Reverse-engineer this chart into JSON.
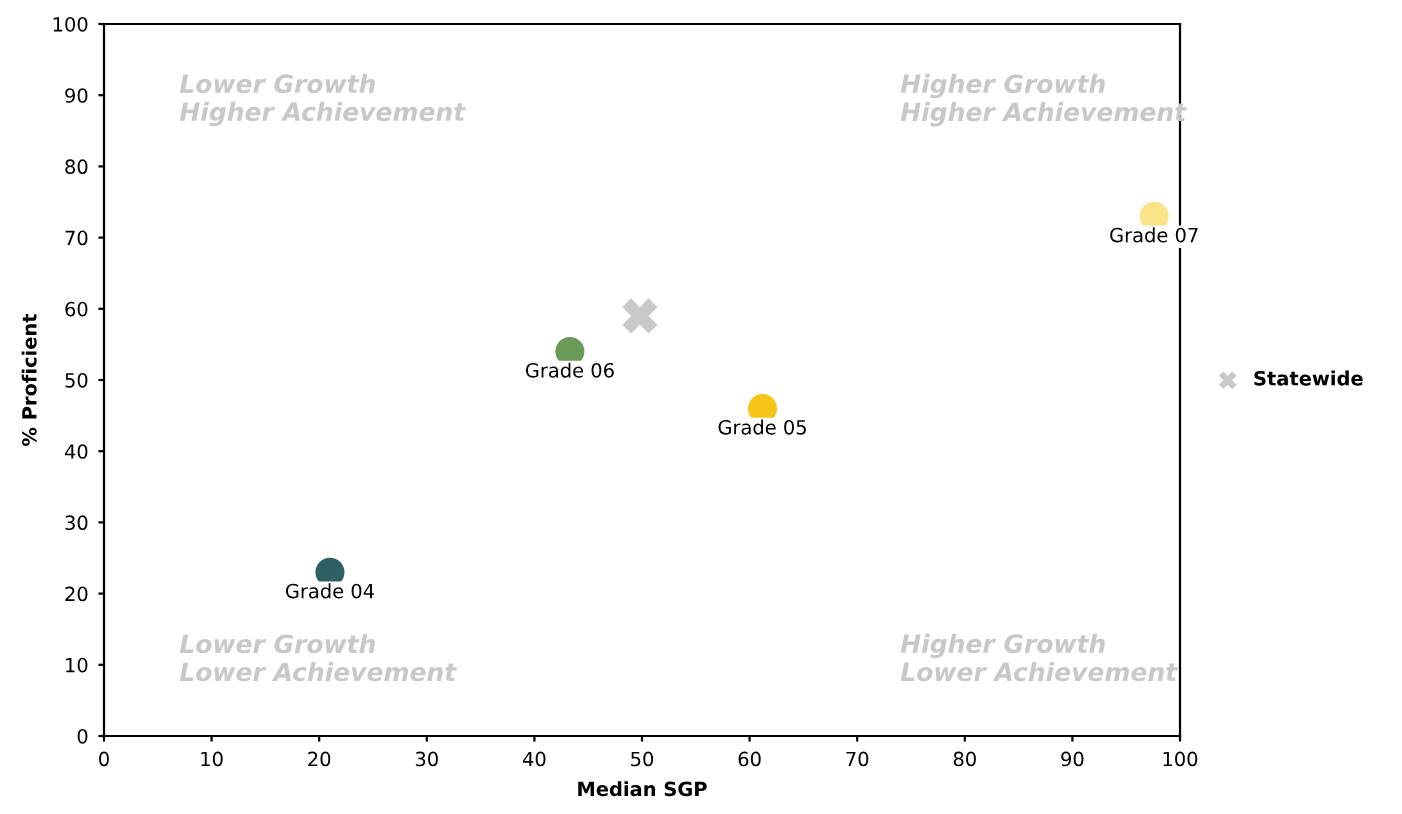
{
  "chart_data": {
    "type": "scatter",
    "xlabel": "Median SGP",
    "ylabel": "% Proficient",
    "xlim": [
      0,
      100
    ],
    "ylim": [
      0,
      100
    ],
    "xticks": [
      0,
      10,
      20,
      30,
      40,
      50,
      60,
      70,
      80,
      90,
      100
    ],
    "yticks": [
      0,
      10,
      20,
      30,
      40,
      50,
      60,
      70,
      80,
      90,
      100
    ],
    "grid": false,
    "legend": "right",
    "marker": "circle",
    "series": [
      {
        "name": "Grade 04",
        "color": "#2e5f63",
        "x": [
          21
        ],
        "values": [
          23
        ]
      },
      {
        "name": "Grade 05",
        "color": "#f5c518",
        "x": [
          61.2
        ],
        "values": [
          46
        ]
      },
      {
        "name": "Grade 06",
        "color": "#6a9a58",
        "x": [
          43.3
        ],
        "values": [
          54
        ]
      },
      {
        "name": "Grade 07",
        "color": "#fbe38a",
        "x": [
          97.6
        ],
        "values": [
          73
        ]
      },
      {
        "name": "Statewide",
        "color": "#c8c8c8",
        "x": [
          49.8
        ],
        "values": [
          59
        ],
        "marker": "cross"
      }
    ],
    "annotations": [
      "Lower Growth\nHigher Achievement",
      "Higher Growth\nHigher Achievement",
      "Lower Growth\nLower Achievement",
      "Higher Growth\nLower Achievement"
    ]
  }
}
